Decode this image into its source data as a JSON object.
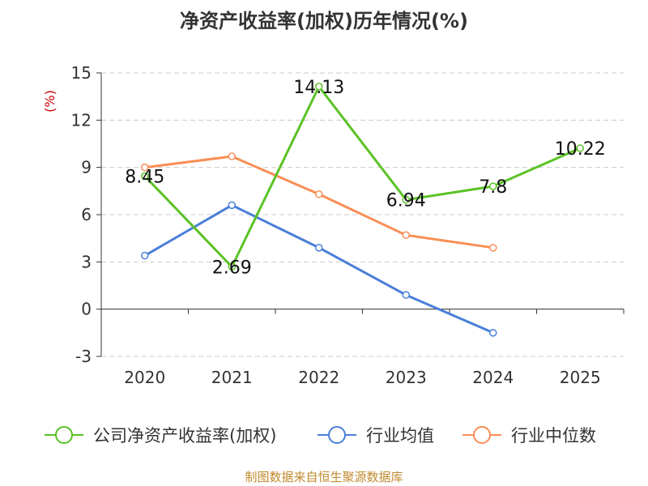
{
  "chart_data": {
    "type": "line",
    "title": "净资产收益率(加权)历年情况(%)",
    "ylabel": "(%)",
    "xlabel": "",
    "categories": [
      "2020",
      "2021",
      "2022",
      "2023",
      "2024",
      "2025"
    ],
    "ylim": [
      -3,
      15
    ],
    "yticks": [
      -3,
      0,
      3,
      6,
      9,
      12,
      15
    ],
    "grid": true,
    "legend_position": "bottom",
    "series": [
      {
        "name": "公司净资产收益率(加权)",
        "color": "#5bc225",
        "values": [
          8.45,
          2.69,
          14.13,
          6.94,
          7.8,
          10.22
        ],
        "labels": [
          "8.45",
          "2.69",
          "14.13",
          "6.94",
          "7.8",
          "10.22"
        ]
      },
      {
        "name": "行业均值",
        "color": "#4a7fd8",
        "values": [
          3.4,
          6.6,
          3.9,
          0.9,
          -1.5,
          null
        ]
      },
      {
        "name": "行业中位数",
        "color": "#f98e55",
        "values": [
          9.0,
          9.7,
          7.3,
          4.7,
          3.9,
          null
        ]
      }
    ]
  },
  "footer": {
    "source": "制图数据来自恒生聚源数据库"
  },
  "colors": {
    "title": "#333333",
    "ylabel": "#cc0000",
    "axis": "#333333",
    "grid": "#cccccc",
    "source": "#c08a2e"
  }
}
